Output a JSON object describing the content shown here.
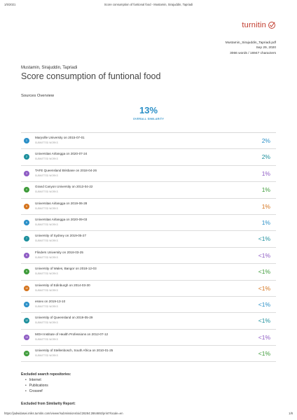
{
  "print_header": {
    "date": "1/5/2021",
    "title": "Score consumption of funtional food - Mustamin, Sirajuddin, Tapriadi"
  },
  "logo": {
    "word": "turnitin",
    "color": "#c0392b",
    "icon": "turnitin-pen-check-icon"
  },
  "meta": {
    "filename": "Mustamin_Sirajuddin_Tapriadi.pdf",
    "date": "Sep 29, 2020",
    "counts": "3066 words / 16947 characters"
  },
  "document": {
    "authors": "Mustamin, Sirajuddin, Tapriadi",
    "title": "Score consumption of funtional food"
  },
  "sources_overview": {
    "heading": "Sources Overview",
    "overall_pct": "13%",
    "overall_label": "OVERALL SIMILARITY",
    "accent": "#2a8fc7"
  },
  "sources": [
    {
      "num": "1",
      "name": "Maryville University on 2015-07-01",
      "kind": "SUBMITTED WORKS",
      "pct": "2%",
      "color": "#2a8fc7"
    },
    {
      "num": "2",
      "name": "Universitas Airlangga on 2020-07-24",
      "kind": "SUBMITTED WORKS",
      "pct": "2%",
      "color": "#1c8f9c"
    },
    {
      "num": "3",
      "name": "TAFE Queensland Brisbane on 2018-04-26",
      "kind": "SUBMITTED WORKS",
      "pct": "1%",
      "color": "#8e5cc4"
    },
    {
      "num": "4",
      "name": "Grand Canyon University on 2013-04-22",
      "kind": "SUBMITTED WORKS",
      "pct": "1%",
      "color": "#3e9b3a"
    },
    {
      "num": "5",
      "name": "Universitas Airlangga on 2019-06-28",
      "kind": "SUBMITTED WORKS",
      "pct": "1%",
      "color": "#d4731c"
    },
    {
      "num": "6",
      "name": "Universitas Airlangga on 2020-09-03",
      "kind": "SUBMITTED WORKS",
      "pct": "1%",
      "color": "#2a8fc7"
    },
    {
      "num": "7",
      "name": "University of Sydney on 2019-05-27",
      "kind": "SUBMITTED WORKS",
      "pct": "<1%",
      "color": "#1c8f9c"
    },
    {
      "num": "8",
      "name": "Flinders University on 2018-03-25",
      "kind": "SUBMITTED WORKS",
      "pct": "<1%",
      "color": "#8e5cc4"
    },
    {
      "num": "9",
      "name": "University of Wales, Bangor on 2018-12-03",
      "kind": "SUBMITTED WORKS",
      "pct": "<1%",
      "color": "#3e9b3a"
    },
    {
      "num": "10",
      "name": "University of Edinburgh on 2014-03-30",
      "kind": "SUBMITTED WORKS",
      "pct": "<1%",
      "color": "#d4731c"
    },
    {
      "num": "11",
      "name": "essex on 2019-13-10",
      "kind": "SUBMITTED WORKS",
      "pct": "<1%",
      "color": "#2a8fc7"
    },
    {
      "num": "12",
      "name": "University of Queensland on 2019-05-29",
      "kind": "SUBMITTED WORKS",
      "pct": "<1%",
      "color": "#1c8f9c"
    },
    {
      "num": "13",
      "name": "MGH Institute of Health Professions on 2012-07-12",
      "kind": "SUBMITTED WORKS",
      "pct": "<1%",
      "color": "#8e5cc4"
    },
    {
      "num": "14",
      "name": "University of Stellenbosch, South Africa on 2010-01-25",
      "kind": "SUBMITTED WORKS",
      "pct": "<1%",
      "color": "#3e9b3a"
    }
  ],
  "excluded": {
    "heading": "Excluded search repositories:",
    "items": [
      "Internet",
      "Publications",
      "Crossref"
    ],
    "report_heading": "Excluded from Similarity Report:"
  },
  "print_footer": {
    "url": "https://jadwidaswi.miks.turnitin.com/viewer/submissions/oid:28284:2864692/print?locale=en",
    "page": "1/8"
  }
}
